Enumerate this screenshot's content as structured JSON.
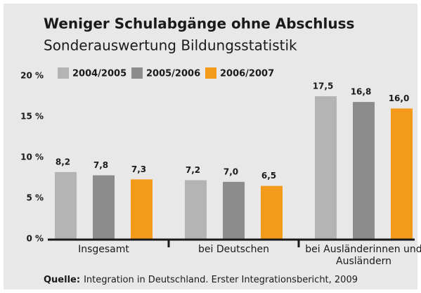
{
  "chart_data": {
    "type": "bar",
    "title": "Weniger Schulabgänge ohne Abschluss",
    "subtitle": "Sonderauswertung Bildungsstatistik",
    "categories": [
      "Insgesamt",
      "bei Deutschen",
      "bei Ausländerinnen und Ausländern"
    ],
    "series": [
      {
        "name": "2004/2005",
        "color": "#b4b4b4",
        "values": [
          8.2,
          7.2,
          17.5
        ],
        "value_labels": [
          "8,2",
          "7,2",
          "17,5"
        ]
      },
      {
        "name": "2005/2006",
        "color": "#8c8c8c",
        "values": [
          7.8,
          7.0,
          16.8
        ],
        "value_labels": [
          "7,8",
          "7,0",
          "16,8"
        ]
      },
      {
        "name": "2006/2007",
        "color": "#f39a1b",
        "values": [
          7.3,
          6.5,
          16.0
        ],
        "value_labels": [
          "7,3",
          "6,5",
          "16,0"
        ]
      }
    ],
    "ylim": [
      0,
      20
    ],
    "yticks": [
      {
        "value": 0,
        "label": "0 %"
      },
      {
        "value": 5,
        "label": "5 %"
      },
      {
        "value": 10,
        "label": "10 %"
      },
      {
        "value": 15,
        "label": "15 %"
      },
      {
        "value": 20,
        "label": "20 %"
      }
    ],
    "legend": "top-left",
    "source_label": "Quelle:",
    "source_text": "Integration in Deutschland. Erster Integrationsbericht, 2009"
  }
}
